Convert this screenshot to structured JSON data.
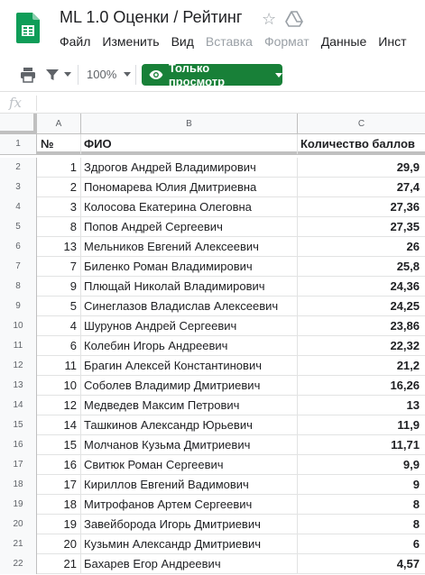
{
  "app": {
    "title": "ML 1.0 Оценки / Рейтинг",
    "icons": {
      "logo": "google-sheets-logo",
      "star": "star-icon",
      "drive": "drive-status-icon"
    },
    "menu": [
      {
        "label": "Файл",
        "disabled": false
      },
      {
        "label": "Изменить",
        "disabled": false
      },
      {
        "label": "Вид",
        "disabled": false
      },
      {
        "label": "Вставка",
        "disabled": true
      },
      {
        "label": "Формат",
        "disabled": true
      },
      {
        "label": "Данные",
        "disabled": false
      },
      {
        "label": "Инст",
        "disabled": false
      }
    ]
  },
  "toolbar": {
    "zoom": "100%",
    "view_only_label": "Только просмотр",
    "accent": "#188038"
  },
  "formula_bar": {
    "fx_label": "fx",
    "value": ""
  },
  "grid": {
    "columns": [
      "A",
      "B",
      "C"
    ],
    "header_row": {
      "row_number": "1",
      "a": "№",
      "b": "ФИО",
      "c": "Количество баллов"
    },
    "rows": [
      {
        "row_number": "2",
        "a": "1",
        "b": "Здрогов Андрей Владимирович",
        "c": "29,9"
      },
      {
        "row_number": "3",
        "a": "2",
        "b": "Пономарева Юлия Дмитриевна",
        "c": "27,4"
      },
      {
        "row_number": "4",
        "a": "3",
        "b": "Колосова Екатерина Олеговна",
        "c": "27,36"
      },
      {
        "row_number": "5",
        "a": "8",
        "b": "Попов Андрей Сергеевич",
        "c": "27,35"
      },
      {
        "row_number": "6",
        "a": "13",
        "b": "Мельников Евгений Алексеевич",
        "c": "26"
      },
      {
        "row_number": "7",
        "a": "7",
        "b": "Биленко Роман Владимирович",
        "c": "25,8"
      },
      {
        "row_number": "8",
        "a": "9",
        "b": "Плющай Николай Владимирович",
        "c": "24,36"
      },
      {
        "row_number": "9",
        "a": "5",
        "b": "Синеглазов Владислав Алексеевич",
        "c": "24,25"
      },
      {
        "row_number": "10",
        "a": "4",
        "b": "Шурунов Андрей Сергеевич",
        "c": "23,86"
      },
      {
        "row_number": "11",
        "a": "6",
        "b": "Колебин Игорь Андреевич",
        "c": "22,32"
      },
      {
        "row_number": "12",
        "a": "11",
        "b": "Брагин Алексей Константинович",
        "c": "21,2"
      },
      {
        "row_number": "13",
        "a": "10",
        "b": "Соболев Владимир Дмитриевич",
        "c": "16,26"
      },
      {
        "row_number": "14",
        "a": "12",
        "b": "Медведев Максим Петрович",
        "c": "13"
      },
      {
        "row_number": "15",
        "a": "14",
        "b": "Ташкинов Александр Юрьевич",
        "c": "11,9"
      },
      {
        "row_number": "16",
        "a": "15",
        "b": "Молчанов Кузьма Дмитриевич",
        "c": "11,71"
      },
      {
        "row_number": "17",
        "a": "16",
        "b": "Свитюк Роман Сергеевич",
        "c": "9,9"
      },
      {
        "row_number": "18",
        "a": "17",
        "b": "Кириллов Евгений Вадимович",
        "c": "9"
      },
      {
        "row_number": "19",
        "a": "18",
        "b": "Митрофанов Артем Сергеевич",
        "c": "8"
      },
      {
        "row_number": "20",
        "a": "19",
        "b": "Завейборода Игорь Дмитриевич",
        "c": "8"
      },
      {
        "row_number": "21",
        "a": "20",
        "b": "Кузьмин Александр Дмитриевич",
        "c": "6"
      },
      {
        "row_number": "22",
        "a": "21",
        "b": "Бахарев Егор Андреевич",
        "c": "4,57"
      }
    ]
  }
}
